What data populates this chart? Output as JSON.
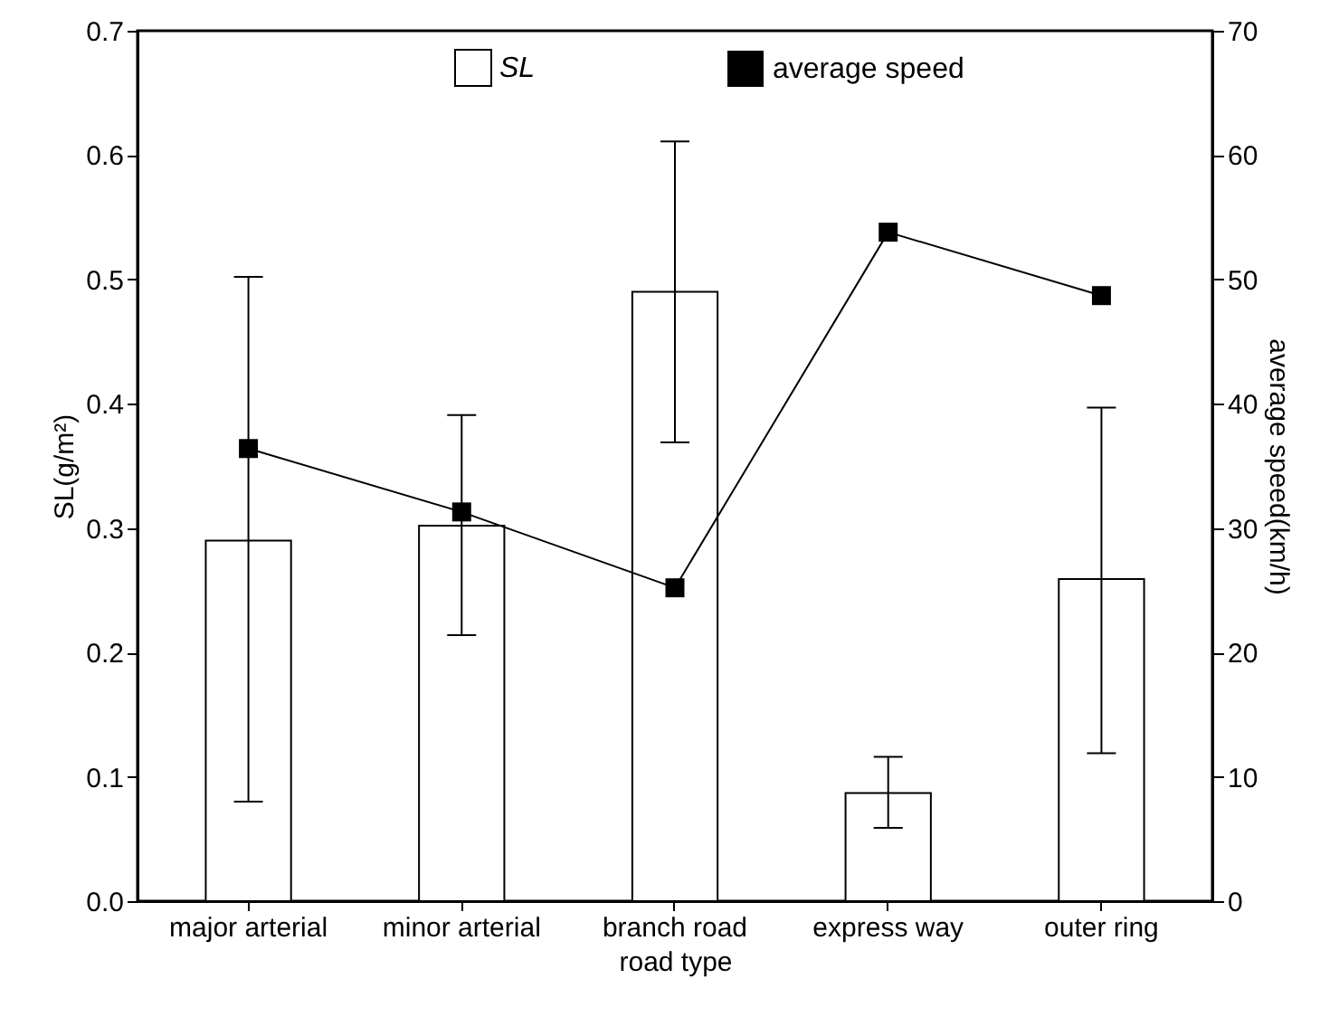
{
  "chart_data": {
    "type": "bar",
    "xlabel": "road type",
    "ylabel": "SL(g/m²)",
    "y2label": "average speed(km/h)",
    "categories": [
      "major arterial",
      "minor arterial",
      "branch road",
      "express way",
      "outer ring"
    ],
    "series": [
      {
        "name": "SL",
        "color": "#ffffff",
        "values": [
          0.29,
          0.302,
          0.49,
          0.087,
          0.259
        ],
        "errors": [
          [
            0.08,
            0.502
          ],
          [
            0.214,
            0.391
          ],
          [
            0.369,
            0.611
          ],
          [
            0.059,
            0.116
          ],
          [
            0.119,
            0.397
          ]
        ]
      },
      {
        "name": "average speed",
        "type": "line",
        "axis": "y2",
        "color": "#000000",
        "marker": "square",
        "values": [
          36.4,
          31.3,
          25.2,
          53.8,
          48.7
        ]
      }
    ],
    "ylim": [
      0,
      0.7
    ],
    "yticks": [
      {
        "value": 0,
        "label": "0.0"
      },
      {
        "value": 0.1,
        "label": "0.1"
      },
      {
        "value": 0.2,
        "label": "0.2"
      },
      {
        "value": 0.3,
        "label": "0.3"
      },
      {
        "value": 0.4,
        "label": "0.4"
      },
      {
        "value": 0.5,
        "label": "0.5"
      },
      {
        "value": 0.6,
        "label": "0.6"
      },
      {
        "value": 0.7,
        "label": "0.7"
      }
    ],
    "y2lim": [
      0,
      70
    ],
    "y2ticks": [
      0,
      10,
      20,
      30,
      40,
      50,
      60,
      70
    ],
    "legend": "top",
    "grid": false
  }
}
